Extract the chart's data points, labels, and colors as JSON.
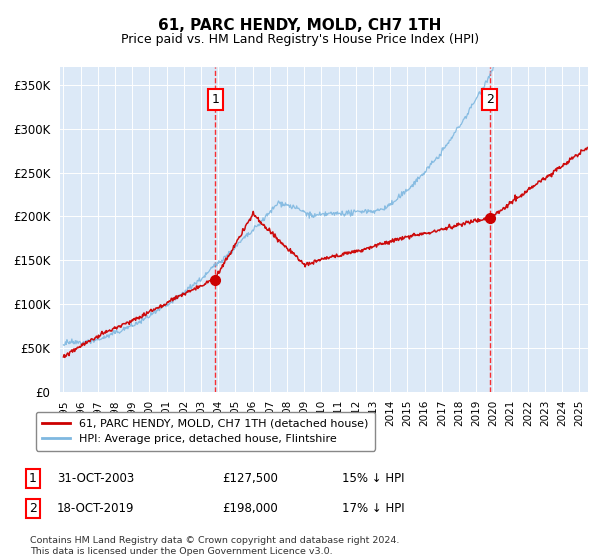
{
  "title": "61, PARC HENDY, MOLD, CH7 1TH",
  "subtitle": "Price paid vs. HM Land Registry's House Price Index (HPI)",
  "ylabel_ticks": [
    "£0",
    "£50K",
    "£100K",
    "£150K",
    "£200K",
    "£250K",
    "£300K",
    "£350K"
  ],
  "ytick_values": [
    0,
    50000,
    100000,
    150000,
    200000,
    250000,
    300000,
    350000
  ],
  "ylim": [
    0,
    370000
  ],
  "xlim_start": 1994.8,
  "xlim_end": 2025.5,
  "background_color": "#dce9f7",
  "plot_bg_color": "#dce9f7",
  "fig_bg_color": "#ffffff",
  "hpi_color": "#7fb8e0",
  "price_color": "#cc0000",
  "marker1_date": 2003.83,
  "marker1_price": 127500,
  "marker1_label": "31-OCT-2003",
  "marker1_amount": "£127,500",
  "marker1_note": "15% ↓ HPI",
  "marker2_date": 2019.79,
  "marker2_price": 198000,
  "marker2_label": "18-OCT-2019",
  "marker2_amount": "£198,000",
  "marker2_note": "17% ↓ HPI",
  "legend_line1": "61, PARC HENDY, MOLD, CH7 1TH (detached house)",
  "legend_line2": "HPI: Average price, detached house, Flintshire",
  "footer": "Contains HM Land Registry data © Crown copyright and database right 2024.\nThis data is licensed under the Open Government Licence v3.0.",
  "xtick_years": [
    1995,
    1996,
    1997,
    1998,
    1999,
    2000,
    2001,
    2002,
    2003,
    2004,
    2005,
    2006,
    2007,
    2008,
    2009,
    2010,
    2011,
    2012,
    2013,
    2014,
    2015,
    2016,
    2017,
    2018,
    2019,
    2020,
    2021,
    2022,
    2023,
    2024,
    2025
  ]
}
